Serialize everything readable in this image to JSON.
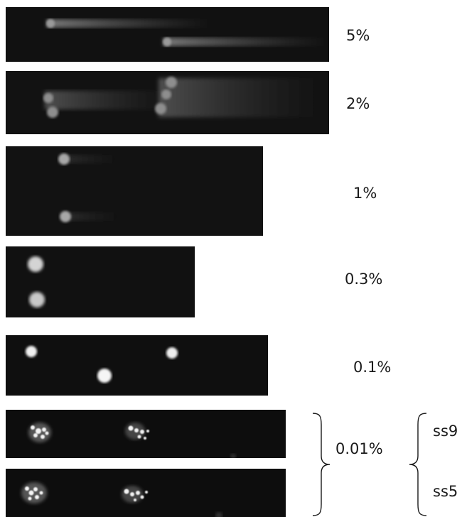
{
  "panels": [
    {
      "label": "5%"
    },
    {
      "label": "2%"
    },
    {
      "label": "1%"
    },
    {
      "label": "0.3%"
    },
    {
      "label": "0.1%"
    },
    {
      "label": "0.01%"
    }
  ],
  "group_label": "0.01%",
  "sub_labels": [
    "ss9",
    "ss5"
  ],
  "colors": {
    "background": "#ffffff",
    "gel": "#101010",
    "spot": "#e8e8e8",
    "text": "#1a1a1a"
  }
}
